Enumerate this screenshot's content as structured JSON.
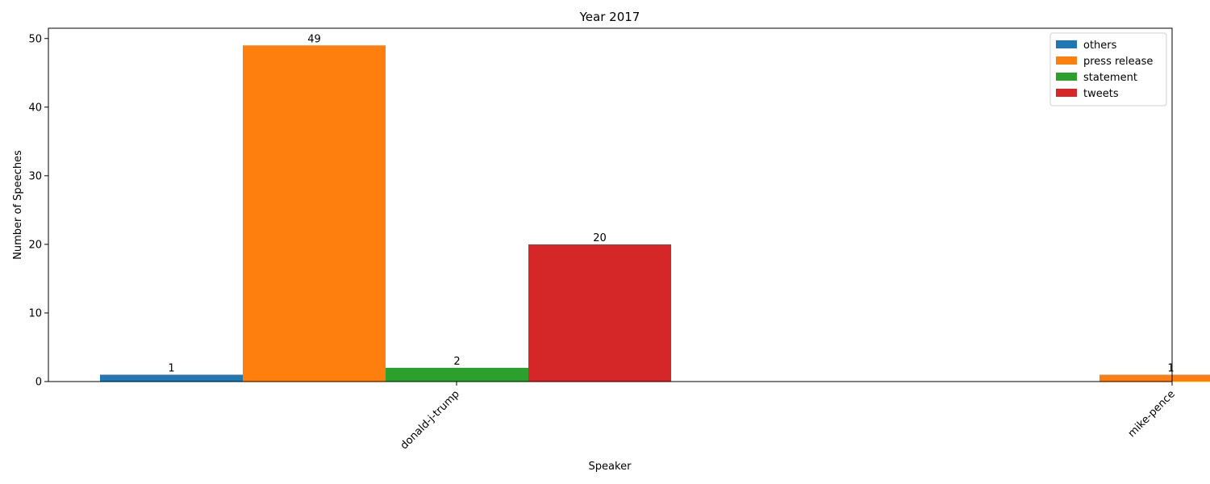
{
  "chart_data": {
    "type": "bar",
    "title": "Year 2017",
    "xlabel": "Speaker",
    "ylabel": "Number of Speeches",
    "categories": [
      "donald-j-trump",
      "mike-pence"
    ],
    "series": [
      {
        "name": "others",
        "color": "#1f77b4",
        "values": [
          1,
          0
        ]
      },
      {
        "name": "press release",
        "color": "#ff7f0e",
        "values": [
          49,
          1
        ]
      },
      {
        "name": "statement",
        "color": "#2ca02c",
        "values": [
          2,
          0
        ]
      },
      {
        "name": "tweets",
        "color": "#d62728",
        "values": [
          20,
          0
        ]
      }
    ],
    "yticks": [
      0,
      10,
      20,
      30,
      40,
      50
    ],
    "ylim": [
      0,
      51.5
    ],
    "grid": false,
    "legend_position": "top-right",
    "xtick_rotation": 45
  }
}
